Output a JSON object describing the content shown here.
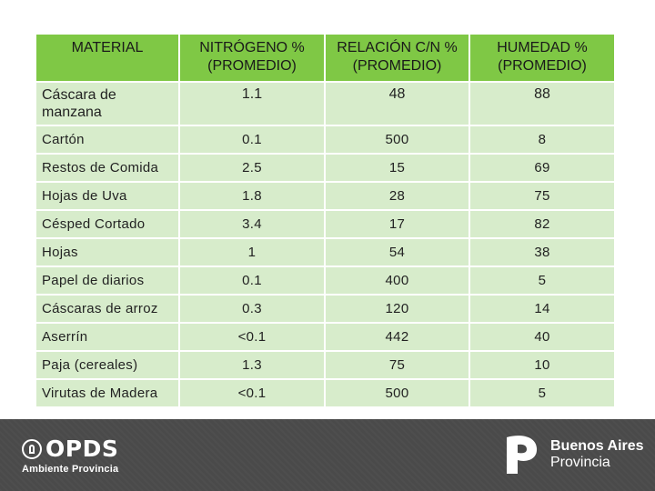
{
  "table": {
    "headers": [
      "MATERIAL",
      "NITRÓGENO % (PROMEDIO)",
      "RELACIÓN C/N % (PROMEDIO)",
      "HUMEDAD % (PROMEDIO)"
    ],
    "rows": [
      [
        "Cáscara de manzana",
        "1.1",
        "48",
        "88"
      ],
      [
        "Cartón",
        "0.1",
        "500",
        "8"
      ],
      [
        "Restos de Comida",
        "2.5",
        "15",
        "69"
      ],
      [
        "Hojas de Uva",
        "1.8",
        "28",
        "75"
      ],
      [
        "Césped Cortado",
        "3.4",
        "17",
        "82"
      ],
      [
        "Hojas",
        "1",
        "54",
        "38"
      ],
      [
        "Papel de diarios",
        "0.1",
        "400",
        "5"
      ],
      [
        "Cáscaras de arroz",
        "0.3",
        "120",
        "14"
      ],
      [
        "Aserrín",
        "<0.1",
        "442",
        "40"
      ],
      [
        "Paja (cereales)",
        "1.3",
        "75",
        "10"
      ],
      [
        "Virutas de Madera",
        "<0.1",
        "500",
        "5"
      ]
    ]
  },
  "footer": {
    "left_logo": {
      "title": "OPDS",
      "subtitle": "Ambiente Provincia"
    },
    "right_logo": {
      "title": "Buenos Aires",
      "subtitle": "Provincia"
    }
  },
  "colors": {
    "header_bg": "#7fc845",
    "cell_bg": "#d7eccb",
    "footer_bg": "#4a4a4a"
  }
}
